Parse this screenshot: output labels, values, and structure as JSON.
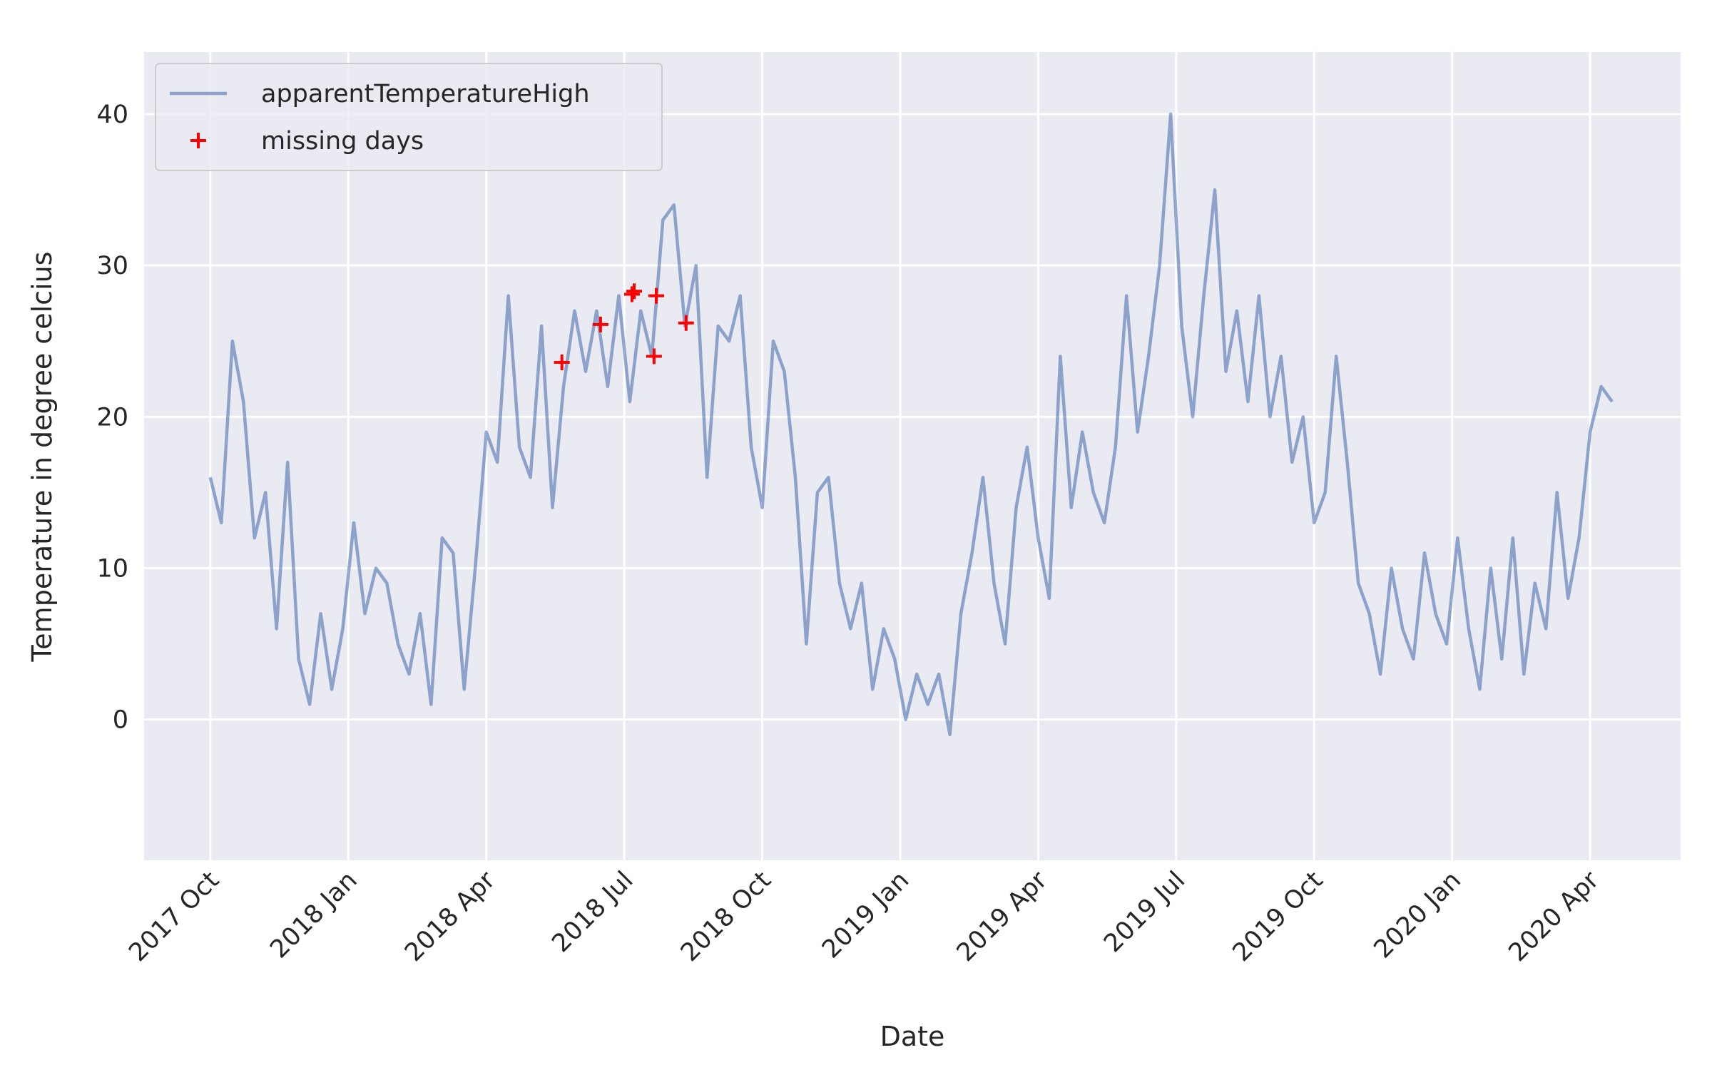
{
  "chart_data": {
    "type": "line",
    "xlabel": "Date",
    "ylabel": "Temperature in degree celcius",
    "grid": true,
    "legend": "upper left",
    "xlim": [
      2017.63,
      2020.414
    ],
    "ylim": [
      -9.3,
      44.1
    ],
    "xticks": [
      {
        "value": 2017.75,
        "label": "2017 Oct"
      },
      {
        "value": 2018.0,
        "label": "2018 Jan"
      },
      {
        "value": 2018.25,
        "label": "2018 Apr"
      },
      {
        "value": 2018.5,
        "label": "2018 Jul"
      },
      {
        "value": 2018.75,
        "label": "2018 Oct"
      },
      {
        "value": 2019.0,
        "label": "2019 Jan"
      },
      {
        "value": 2019.25,
        "label": "2019 Apr"
      },
      {
        "value": 2019.5,
        "label": "2019 Jul"
      },
      {
        "value": 2019.75,
        "label": "2019 Oct"
      },
      {
        "value": 2020.0,
        "label": "2020 Jan"
      },
      {
        "value": 2020.25,
        "label": "2020 Apr"
      }
    ],
    "yticks": [
      0,
      10,
      20,
      30,
      40
    ],
    "series": [
      {
        "name": "apparentTemperatureHigh",
        "type": "line",
        "color": "#4c72b0",
        "x": [
          2017.75,
          2017.77,
          2017.79,
          2017.81,
          2017.83,
          2017.85,
          2017.87,
          2017.89,
          2017.91,
          2017.93,
          2017.95,
          2017.97,
          2017.99,
          2018.01,
          2018.03,
          2018.05,
          2018.07,
          2018.09,
          2018.11,
          2018.13,
          2018.15,
          2018.17,
          2018.19,
          2018.21,
          2018.23,
          2018.25,
          2018.27,
          2018.29,
          2018.31,
          2018.33,
          2018.35,
          2018.37,
          2018.39,
          2018.41,
          2018.43,
          2018.45,
          2018.47,
          2018.49,
          2018.51,
          2018.53,
          2018.55,
          2018.57,
          2018.59,
          2018.61,
          2018.63,
          2018.65,
          2018.67,
          2018.69,
          2018.71,
          2018.73,
          2018.75,
          2018.77,
          2018.79,
          2018.81,
          2018.83,
          2018.85,
          2018.87,
          2018.89,
          2018.91,
          2018.93,
          2018.95,
          2018.97,
          2018.99,
          2019.01,
          2019.03,
          2019.05,
          2019.07,
          2019.09,
          2019.11,
          2019.13,
          2019.15,
          2019.17,
          2019.19,
          2019.21,
          2019.23,
          2019.25,
          2019.27,
          2019.29,
          2019.31,
          2019.33,
          2019.35,
          2019.37,
          2019.39,
          2019.41,
          2019.43,
          2019.45,
          2019.47,
          2019.49,
          2019.51,
          2019.53,
          2019.55,
          2019.57,
          2019.59,
          2019.61,
          2019.63,
          2019.65,
          2019.67,
          2019.69,
          2019.71,
          2019.73,
          2019.75,
          2019.77,
          2019.79,
          2019.81,
          2019.83,
          2019.85,
          2019.87,
          2019.89,
          2019.91,
          2019.93,
          2019.95,
          2019.97,
          2019.99,
          2020.01,
          2020.03,
          2020.05,
          2020.07,
          2020.09,
          2020.11,
          2020.13,
          2020.15,
          2020.17,
          2020.19,
          2020.21,
          2020.23,
          2020.25,
          2020.27,
          2020.29
        ],
        "values": [
          16,
          13,
          25,
          21,
          12,
          15,
          6,
          17,
          4,
          1,
          7,
          2,
          6,
          13,
          7,
          10,
          9,
          5,
          3,
          7,
          1,
          12,
          11,
          2,
          10,
          19,
          17,
          28,
          18,
          16,
          26,
          14,
          22,
          27,
          23,
          27,
          22,
          28,
          21,
          27,
          24,
          33,
          34,
          26,
          30,
          16,
          26,
          25,
          28,
          18,
          14,
          25,
          23,
          16,
          5,
          15,
          16,
          9,
          6,
          9,
          2,
          6,
          4,
          0,
          3,
          1,
          3,
          -1,
          7,
          11,
          16,
          9,
          5,
          14,
          18,
          12,
          8,
          24,
          14,
          19,
          15,
          13,
          18,
          28,
          19,
          24,
          30,
          40,
          26,
          20,
          28,
          35,
          23,
          27,
          21,
          28,
          20,
          24,
          17,
          20,
          13,
          15,
          24,
          17,
          9,
          7,
          3,
          10,
          6,
          4,
          11,
          7,
          5,
          12,
          6,
          2,
          10,
          4,
          12,
          3,
          9,
          6,
          15,
          8,
          12,
          19,
          22,
          21
        ]
      },
      {
        "name": "missing days",
        "type": "scatter",
        "color": "#ff0000",
        "x": [
          2018.387,
          2018.457,
          2018.514,
          2018.518,
          2018.554,
          2018.558,
          2018.612
        ],
        "values": [
          23.6,
          26.1,
          28.1,
          28.3,
          24.0,
          28.0,
          26.2
        ]
      }
    ]
  }
}
